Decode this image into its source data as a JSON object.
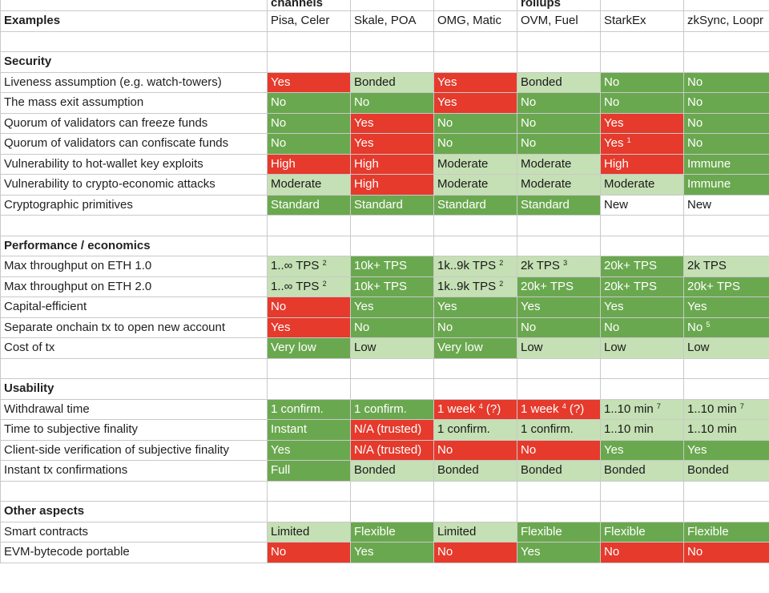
{
  "header_top": [
    "",
    "channels",
    "",
    "",
    "rollups",
    "",
    ""
  ],
  "examples_row": {
    "label": "Examples",
    "values": [
      "Pisa, Celer",
      "Skale, POA",
      "OMG, Matic",
      "OVM, Fuel",
      "StarkEx",
      "zkSync, Loopr"
    ]
  },
  "colors": {
    "red": "#e53a2c",
    "green": "#6aa84f",
    "light_green": "#c5e0b4",
    "white": "#ffffff"
  },
  "sections": [
    {
      "title": "Security",
      "rows": [
        {
          "label": "Liveness assumption (e.g. watch-towers)",
          "cells": [
            {
              "text": "Yes",
              "color": "red"
            },
            {
              "text": "Bonded",
              "color": "light"
            },
            {
              "text": "Yes",
              "color": "red"
            },
            {
              "text": "Bonded",
              "color": "light"
            },
            {
              "text": "No",
              "color": "green"
            },
            {
              "text": "No",
              "color": "green"
            }
          ]
        },
        {
          "label": "The mass exit assumption",
          "cells": [
            {
              "text": "No",
              "color": "green"
            },
            {
              "text": "No",
              "color": "green"
            },
            {
              "text": "Yes",
              "color": "red"
            },
            {
              "text": "No",
              "color": "green"
            },
            {
              "text": "No",
              "color": "green"
            },
            {
              "text": "No",
              "color": "green"
            }
          ]
        },
        {
          "label": "Quorum of validators can freeze funds",
          "cells": [
            {
              "text": "No",
              "color": "green"
            },
            {
              "text": "Yes",
              "color": "red"
            },
            {
              "text": "No",
              "color": "green"
            },
            {
              "text": "No",
              "color": "green"
            },
            {
              "text": "Yes",
              "color": "red"
            },
            {
              "text": "No",
              "color": "green"
            }
          ]
        },
        {
          "label": "Quorum of validators can confiscate funds",
          "cells": [
            {
              "text": "No",
              "color": "green"
            },
            {
              "text": "Yes",
              "color": "red"
            },
            {
              "text": "No",
              "color": "green"
            },
            {
              "text": "No",
              "color": "green"
            },
            {
              "text": "Yes",
              "sup": "1",
              "color": "red"
            },
            {
              "text": "No",
              "color": "green"
            }
          ]
        },
        {
          "label": "Vulnerability to hot-wallet key exploits",
          "cells": [
            {
              "text": "High",
              "color": "red"
            },
            {
              "text": "High",
              "color": "red"
            },
            {
              "text": "Moderate",
              "color": "light"
            },
            {
              "text": "Moderate",
              "color": "light"
            },
            {
              "text": "High",
              "color": "red"
            },
            {
              "text": "Immune",
              "color": "green"
            }
          ]
        },
        {
          "label": "Vulnerability to crypto-economic attacks",
          "cells": [
            {
              "text": "Moderate",
              "color": "light"
            },
            {
              "text": "High",
              "color": "red"
            },
            {
              "text": "Moderate",
              "color": "light"
            },
            {
              "text": "Moderate",
              "color": "light"
            },
            {
              "text": "Moderate",
              "color": "light"
            },
            {
              "text": "Immune",
              "color": "green"
            }
          ]
        },
        {
          "label": "Cryptographic primitives",
          "cells": [
            {
              "text": "Standard",
              "color": "green"
            },
            {
              "text": "Standard",
              "color": "green"
            },
            {
              "text": "Standard",
              "color": "green"
            },
            {
              "text": "Standard",
              "color": "green"
            },
            {
              "text": "New",
              "color": "white"
            },
            {
              "text": "New",
              "color": "white"
            }
          ]
        }
      ]
    },
    {
      "title": "Performance / economics",
      "rows": [
        {
          "label": "Max throughput on ETH 1.0",
          "cells": [
            {
              "text": "1..∞ TPS",
              "sup": "2",
              "color": "light"
            },
            {
              "text": "10k+ TPS",
              "color": "green"
            },
            {
              "text": "1k..9k TPS",
              "sup": "2",
              "color": "light"
            },
            {
              "text": "2k TPS",
              "sup": "3",
              "color": "light"
            },
            {
              "text": "20k+ TPS",
              "color": "green"
            },
            {
              "text": "2k TPS",
              "color": "light"
            }
          ]
        },
        {
          "label": "Max throughput on ETH 2.0",
          "cells": [
            {
              "text": "1..∞ TPS",
              "sup": "2",
              "color": "light"
            },
            {
              "text": "10k+ TPS",
              "color": "green"
            },
            {
              "text": "1k..9k TPS",
              "sup": "2",
              "color": "light"
            },
            {
              "text": "20k+ TPS",
              "color": "green"
            },
            {
              "text": "20k+ TPS",
              "color": "green"
            },
            {
              "text": "20k+ TPS",
              "color": "green"
            }
          ]
        },
        {
          "label": "Capital-efficient",
          "cells": [
            {
              "text": "No",
              "color": "red"
            },
            {
              "text": "Yes",
              "color": "green"
            },
            {
              "text": "Yes",
              "color": "green"
            },
            {
              "text": "Yes",
              "color": "green"
            },
            {
              "text": "Yes",
              "color": "green"
            },
            {
              "text": "Yes",
              "color": "green"
            }
          ]
        },
        {
          "label": "Separate onchain tx to open new account",
          "cells": [
            {
              "text": "Yes",
              "color": "red"
            },
            {
              "text": "No",
              "color": "green"
            },
            {
              "text": "No",
              "color": "green"
            },
            {
              "text": "No",
              "color": "green"
            },
            {
              "text": "No",
              "color": "green"
            },
            {
              "text": "No",
              "sup": "5",
              "color": "green"
            }
          ]
        },
        {
          "label": "Cost of tx",
          "cells": [
            {
              "text": "Very low",
              "color": "green"
            },
            {
              "text": "Low",
              "color": "light"
            },
            {
              "text": "Very low",
              "color": "green"
            },
            {
              "text": "Low",
              "color": "light"
            },
            {
              "text": "Low",
              "color": "light"
            },
            {
              "text": "Low",
              "color": "light"
            }
          ]
        }
      ]
    },
    {
      "title": "Usability",
      "rows": [
        {
          "label": "Withdrawal time",
          "cells": [
            {
              "text": "1 confirm.",
              "color": "green"
            },
            {
              "text": "1 confirm.",
              "color": "green"
            },
            {
              "text": "1 week",
              "sup": "4",
              "after": " (?)",
              "color": "red"
            },
            {
              "text": "1 week",
              "sup": "4",
              "after": " (?)",
              "color": "red"
            },
            {
              "text": "1..10 min",
              "sup": "7",
              "color": "light"
            },
            {
              "text": "1..10 min",
              "sup": "7",
              "color": "light"
            }
          ]
        },
        {
          "label": "Time to subjective finality",
          "cells": [
            {
              "text": "Instant",
              "color": "green"
            },
            {
              "text": "N/A (trusted)",
              "color": "red"
            },
            {
              "text": "1 confirm.",
              "color": "light"
            },
            {
              "text": "1 confirm.",
              "color": "light"
            },
            {
              "text": "1..10 min",
              "color": "light"
            },
            {
              "text": "1..10 min",
              "color": "light"
            }
          ]
        },
        {
          "label": "Client-side verification of subjective finality",
          "cells": [
            {
              "text": "Yes",
              "color": "green"
            },
            {
              "text": "N/A (trusted)",
              "color": "red"
            },
            {
              "text": "No",
              "color": "red"
            },
            {
              "text": "No",
              "color": "red"
            },
            {
              "text": "Yes",
              "color": "green"
            },
            {
              "text": "Yes",
              "color": "green"
            }
          ]
        },
        {
          "label": "Instant tx confirmations",
          "cells": [
            {
              "text": "Full",
              "color": "green"
            },
            {
              "text": "Bonded",
              "color": "light"
            },
            {
              "text": "Bonded",
              "color": "light"
            },
            {
              "text": "Bonded",
              "color": "light"
            },
            {
              "text": "Bonded",
              "color": "light"
            },
            {
              "text": "Bonded",
              "color": "light"
            }
          ]
        }
      ]
    },
    {
      "title": "Other aspects",
      "rows": [
        {
          "label": "Smart contracts",
          "cells": [
            {
              "text": "Limited",
              "color": "light"
            },
            {
              "text": "Flexible",
              "color": "green"
            },
            {
              "text": "Limited",
              "color": "light"
            },
            {
              "text": "Flexible",
              "color": "green"
            },
            {
              "text": "Flexible",
              "color": "green"
            },
            {
              "text": "Flexible",
              "color": "green"
            }
          ]
        },
        {
          "label": "EVM-bytecode portable",
          "cells": [
            {
              "text": "No",
              "color": "red"
            },
            {
              "text": "Yes",
              "color": "green"
            },
            {
              "text": "No",
              "color": "red"
            },
            {
              "text": "Yes",
              "color": "green"
            },
            {
              "text": "No",
              "color": "red"
            },
            {
              "text": "No",
              "color": "red"
            }
          ]
        }
      ]
    }
  ]
}
